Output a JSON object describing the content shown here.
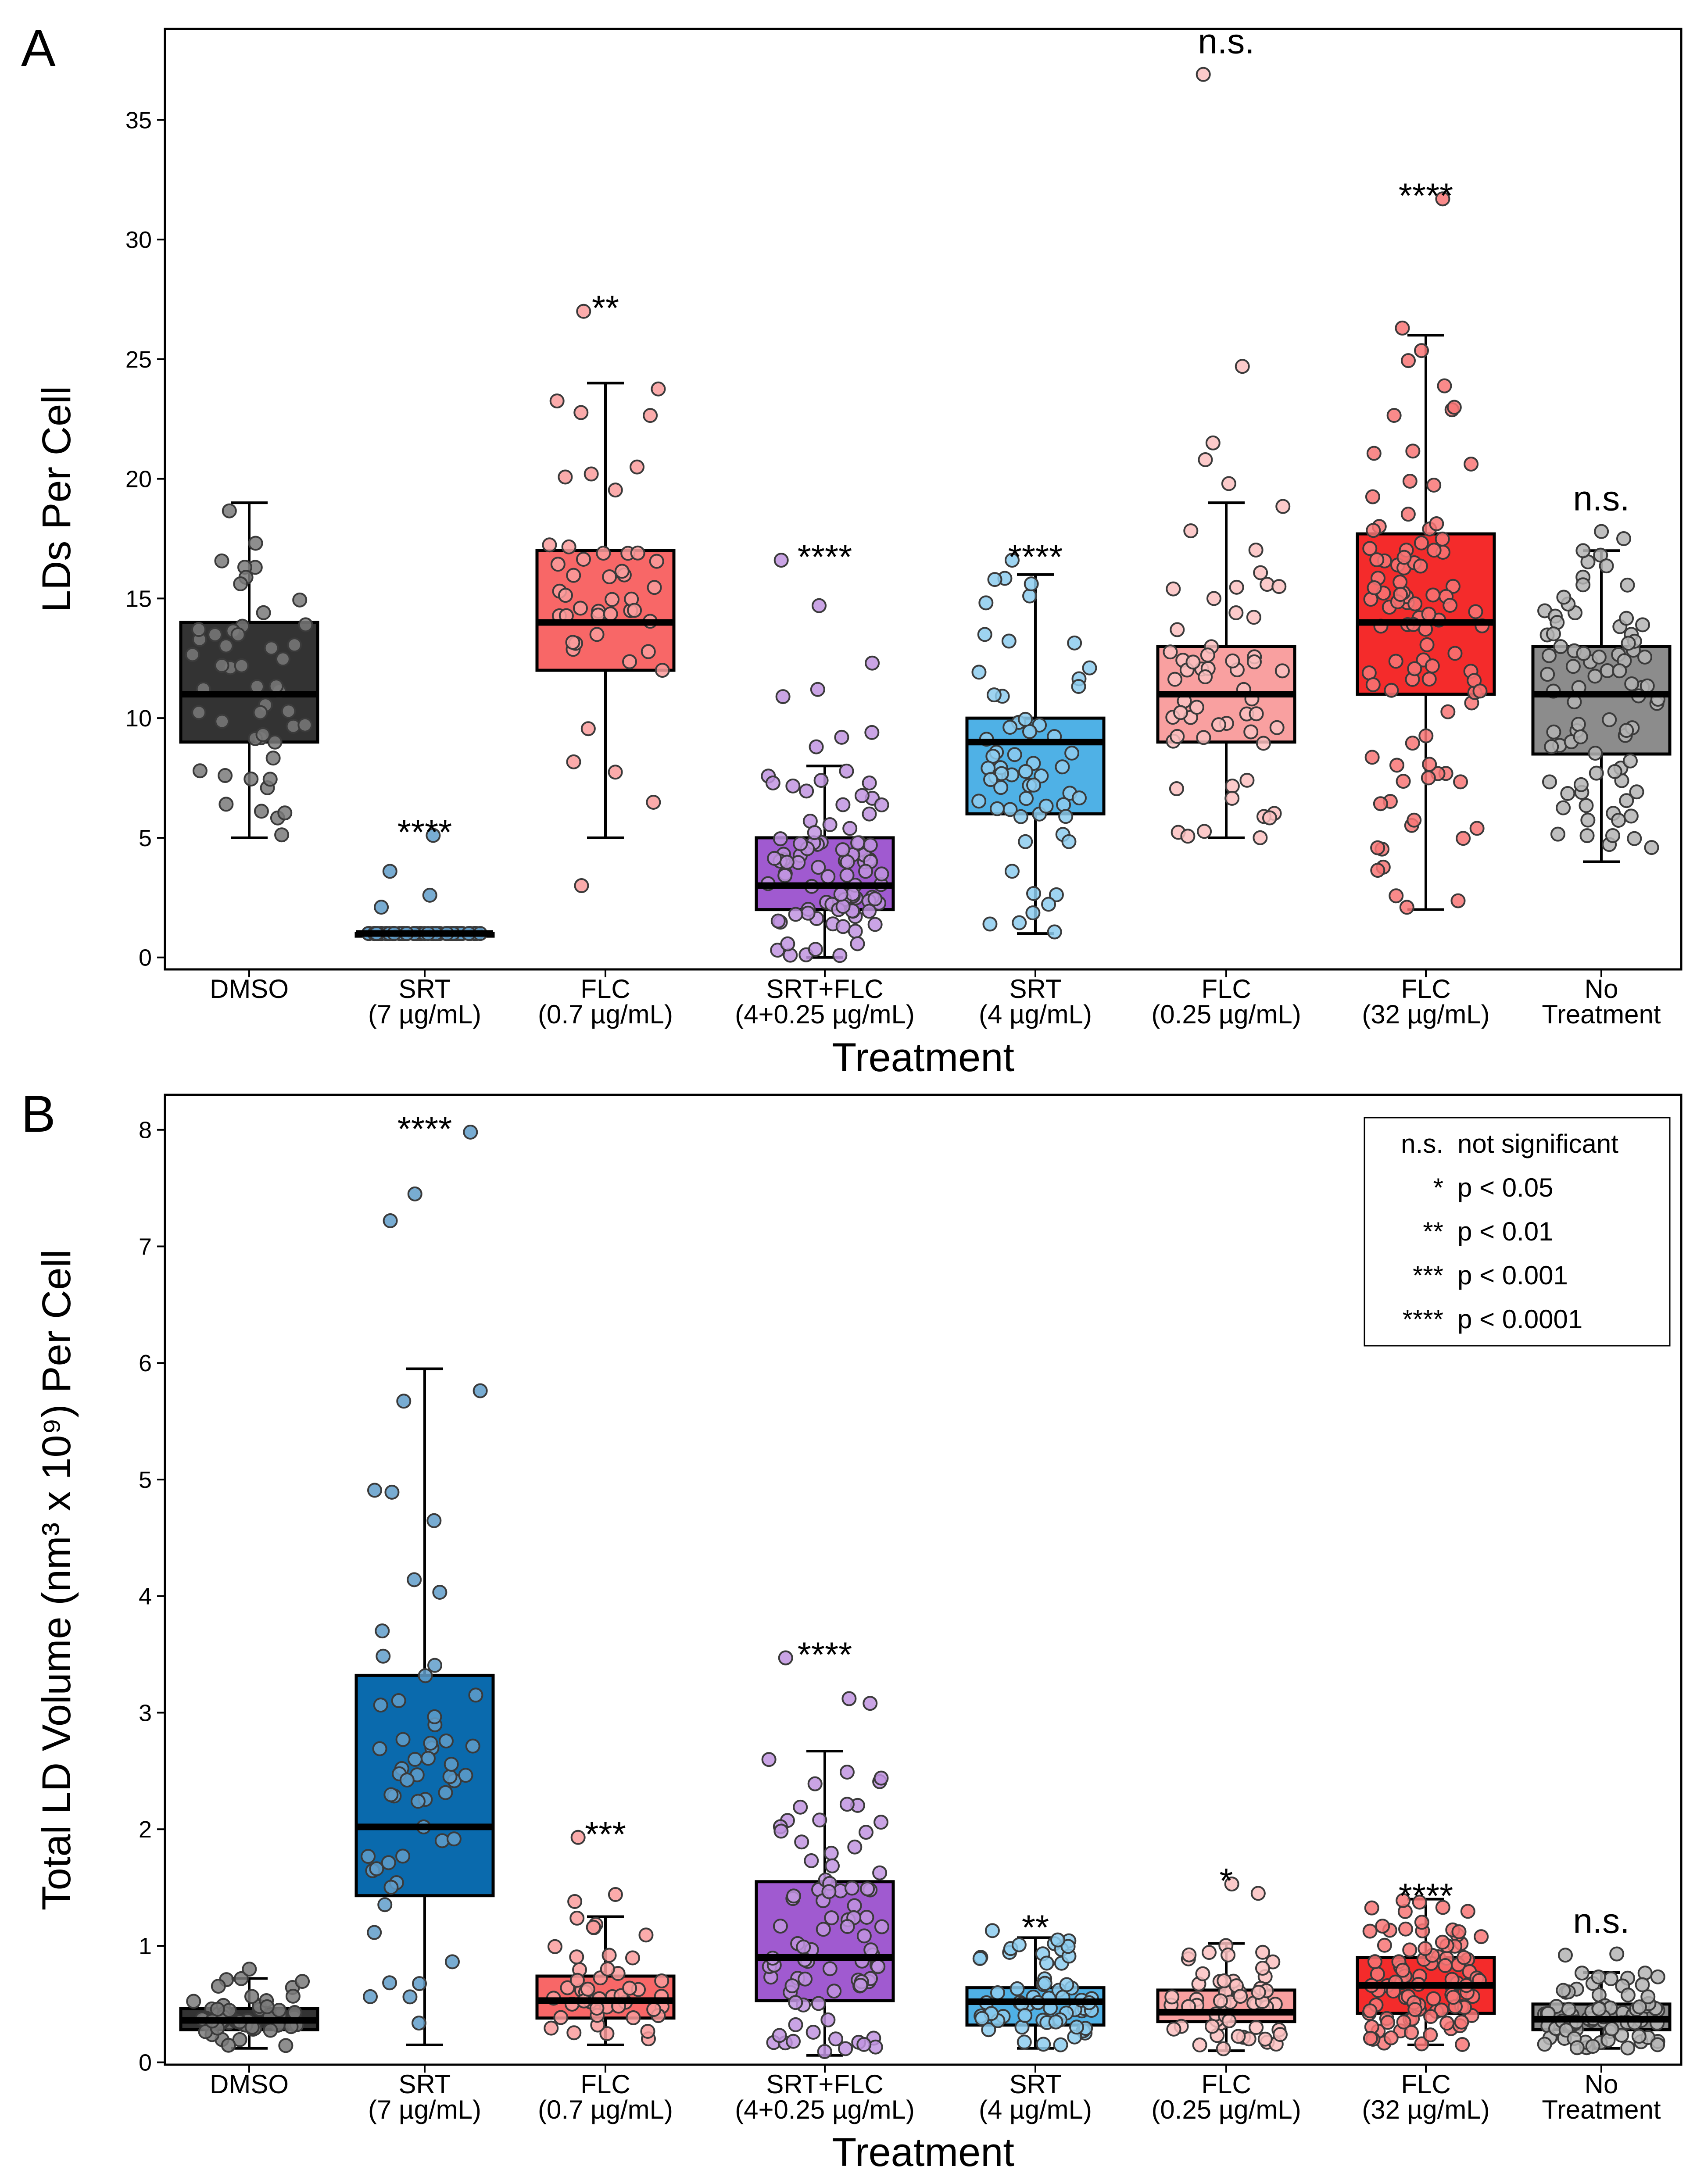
{
  "chart_data": [
    {
      "panel": "A",
      "type": "box",
      "xlabel": "Treatment",
      "ylabel": "LDs Per Cell",
      "ylim": [
        -0.5,
        38.8
      ],
      "yticks": [
        0,
        5,
        10,
        15,
        20,
        25,
        30,
        35
      ],
      "categories": [
        {
          "line1": "DMSO",
          "line2": "",
          "color": "#333333",
          "min": 5,
          "q1": 9,
          "median": 11,
          "q3": 14,
          "max": 19,
          "n": 50,
          "outliers": [],
          "significance": ""
        },
        {
          "line1": "SRT",
          "line2": "(7 µg/mL)",
          "color": "#0a6aad",
          "min": 1,
          "q1": 1,
          "median": 1,
          "q3": 1,
          "max": 1,
          "n": 60,
          "outliers": [
            5.1,
            3.6,
            2.6,
            2.1
          ],
          "significance": "****"
        },
        {
          "line1": "FLC",
          "line2": "(0.7 µg/mL)",
          "color": "#f86767",
          "min": 5,
          "q1": 12,
          "median": 14,
          "q3": 17,
          "max": 24,
          "n": 45,
          "outliers": [
            27,
            3
          ],
          "significance": "**"
        },
        {
          "line1": "SRT+FLC",
          "line2": "(4+0.25 µg/mL)",
          "color": "#a05ad0",
          "min": 0,
          "q1": 2,
          "median": 3,
          "q3": 5,
          "max": 8,
          "n": 85,
          "outliers": [
            16.6,
            14.7,
            12.3,
            11.2,
            10.9,
            9.4,
            9.2,
            8.8
          ],
          "significance": "****"
        },
        {
          "line1": "SRT",
          "line2": "(4 µg/mL)",
          "color": "#4fb1e6",
          "min": 1,
          "q1": 6,
          "median": 9,
          "q3": 10,
          "max": 16,
          "n": 60,
          "outliers": [
            16.6
          ],
          "significance": "****"
        },
        {
          "line1": "FLC",
          "line2": "(0.25 µg/mL)",
          "color": "#f9a0a0",
          "min": 5,
          "q1": 9,
          "median": 11,
          "q3": 13,
          "max": 19,
          "n": 55,
          "outliers": [
            36.9,
            24.7,
            21.5,
            20.8,
            19.8
          ],
          "significance": "n.s."
        },
        {
          "line1": "FLC",
          "line2": "(32 µg/mL)",
          "color": "#f42b2b",
          "min": 2,
          "q1": 11,
          "median": 14,
          "q3": 17.7,
          "max": 26,
          "n": 95,
          "outliers": [
            31.7,
            26.3
          ],
          "significance": "****"
        },
        {
          "line1": "No",
          "line2": "Treatment",
          "color": "#8c8c8c",
          "min": 4,
          "q1": 8.5,
          "median": 11,
          "q3": 13,
          "max": 17,
          "n": 80,
          "outliers": [
            17.8,
            17.5
          ],
          "significance": "n.s."
        }
      ]
    },
    {
      "panel": "B",
      "type": "box",
      "xlabel": "Treatment",
      "ylabel": "Total LD Volume (nm³ x 10⁹) Per Cell",
      "ylim": [
        -0.02,
        8.3
      ],
      "yticks": [
        0,
        1,
        2,
        3,
        4,
        5,
        6,
        7,
        8
      ],
      "legend": {
        "position": "top-right",
        "entries": [
          {
            "symbol": "n.s.",
            "text": "not significant"
          },
          {
            "symbol": "*",
            "text": "p < 0.05"
          },
          {
            "symbol": "**",
            "text": "p < 0.01"
          },
          {
            "symbol": "***",
            "text": "p < 0.001"
          },
          {
            "symbol": "****",
            "text": "p < 0.0001"
          }
        ]
      },
      "categories": [
        {
          "line1": "DMSO",
          "line2": "",
          "color": "#333333",
          "min": 0.12,
          "q1": 0.28,
          "median": 0.36,
          "q3": 0.46,
          "max": 0.72,
          "n": 55,
          "outliers": [
            0.8
          ],
          "significance": ""
        },
        {
          "line1": "SRT",
          "line2": "(7 µg/mL)",
          "color": "#0a6aad",
          "min": 0.15,
          "q1": 1.43,
          "median": 2.02,
          "q3": 3.32,
          "max": 5.95,
          "n": 55,
          "outliers": [
            7.98,
            7.45,
            7.22
          ],
          "significance": "****"
        },
        {
          "line1": "FLC",
          "line2": "(0.7 µg/mL)",
          "color": "#f86767",
          "min": 0.15,
          "q1": 0.38,
          "median": 0.53,
          "q3": 0.74,
          "max": 1.25,
          "n": 45,
          "outliers": [
            1.93,
            1.44,
            1.38
          ],
          "significance": "***"
        },
        {
          "line1": "SRT+FLC",
          "line2": "(4+0.25 µg/mL)",
          "color": "#a05ad0",
          "min": 0.06,
          "q1": 0.53,
          "median": 0.9,
          "q3": 1.55,
          "max": 2.67,
          "n": 85,
          "outliers": [
            3.47,
            3.12,
            3.08
          ],
          "significance": "****"
        },
        {
          "line1": "SRT",
          "line2": "(4 µg/mL)",
          "color": "#4fb1e6",
          "min": 0.12,
          "q1": 0.32,
          "median": 0.52,
          "q3": 0.64,
          "max": 1.07,
          "n": 60,
          "outliers": [
            1.13
          ],
          "significance": "**"
        },
        {
          "line1": "FLC",
          "line2": "(0.25 µg/mL)",
          "color": "#f9a0a0",
          "min": 0.1,
          "q1": 0.35,
          "median": 0.43,
          "q3": 0.62,
          "max": 1.02,
          "n": 55,
          "outliers": [
            1.53,
            1.45
          ],
          "significance": "*"
        },
        {
          "line1": "FLC",
          "line2": "(32 µg/mL)",
          "color": "#f42b2b",
          "min": 0.15,
          "q1": 0.42,
          "median": 0.66,
          "q3": 0.9,
          "max": 1.4,
          "n": 95,
          "outliers": [],
          "significance": "****"
        },
        {
          "line1": "No",
          "line2": "Treatment",
          "color": "#8c8c8c",
          "min": 0.12,
          "q1": 0.28,
          "median": 0.37,
          "q3": 0.5,
          "max": 0.77,
          "n": 80,
          "outliers": [
            0.93,
            0.92
          ],
          "significance": "n.s."
        }
      ]
    }
  ]
}
